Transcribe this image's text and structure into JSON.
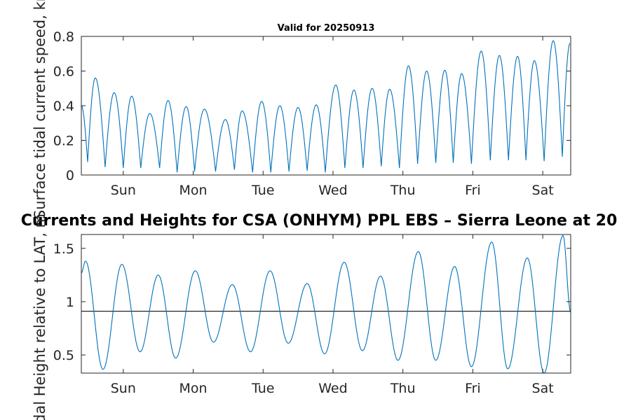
{
  "chart_data": [
    {
      "type": "line",
      "title": "Valid for 20250913",
      "ylabel": "Surface tidal current speed, kn",
      "xlabel": "",
      "ylim": [
        0,
        0.8
      ],
      "yticks": [
        "0",
        "0.2",
        "0.4",
        "0.6",
        "0.8"
      ],
      "xticks": [
        "Sun",
        "Mon",
        "Tue",
        "Wed",
        "Thu",
        "Fri",
        "Sat"
      ],
      "xrange_days": [
        0,
        7
      ],
      "grid": false,
      "series": [
        {
          "peaks": [
            {
              "x": 0.0,
              "y": 0.4
            },
            {
              "x": 0.2,
              "y": 0.56
            },
            {
              "x": 0.47,
              "y": 0.475
            },
            {
              "x": 0.72,
              "y": 0.455
            },
            {
              "x": 0.98,
              "y": 0.355
            },
            {
              "x": 1.24,
              "y": 0.43
            },
            {
              "x": 1.5,
              "y": 0.395
            },
            {
              "x": 1.76,
              "y": 0.38
            },
            {
              "x": 2.06,
              "y": 0.32
            },
            {
              "x": 2.3,
              "y": 0.37
            },
            {
              "x": 2.58,
              "y": 0.425
            },
            {
              "x": 2.84,
              "y": 0.4
            },
            {
              "x": 3.1,
              "y": 0.39
            },
            {
              "x": 3.36,
              "y": 0.405
            },
            {
              "x": 3.64,
              "y": 0.52
            },
            {
              "x": 3.9,
              "y": 0.49
            },
            {
              "x": 4.16,
              "y": 0.5
            },
            {
              "x": 4.41,
              "y": 0.495
            },
            {
              "x": 4.68,
              "y": 0.63
            },
            {
              "x": 4.94,
              "y": 0.6
            },
            {
              "x": 5.2,
              "y": 0.605
            },
            {
              "x": 5.44,
              "y": 0.585
            },
            {
              "x": 5.72,
              "y": 0.715
            },
            {
              "x": 5.98,
              "y": 0.69
            },
            {
              "x": 6.24,
              "y": 0.685
            },
            {
              "x": 6.48,
              "y": 0.66
            },
            {
              "x": 6.75,
              "y": 0.775
            },
            {
              "x": 6.99,
              "y": 0.76
            }
          ],
          "troughs": [
            {
              "x": 0.09,
              "y": 0.075
            },
            {
              "x": 0.34,
              "y": 0.045
            },
            {
              "x": 0.6,
              "y": 0.04
            },
            {
              "x": 0.85,
              "y": 0.04
            },
            {
              "x": 1.12,
              "y": 0.04
            },
            {
              "x": 1.37,
              "y": 0.015
            },
            {
              "x": 1.62,
              "y": 0.02
            },
            {
              "x": 1.92,
              "y": 0.02
            },
            {
              "x": 2.19,
              "y": 0.03
            },
            {
              "x": 2.45,
              "y": 0.015
            },
            {
              "x": 2.71,
              "y": 0.015
            },
            {
              "x": 2.97,
              "y": 0.02
            },
            {
              "x": 3.23,
              "y": 0.025
            },
            {
              "x": 3.49,
              "y": 0.015
            },
            {
              "x": 3.77,
              "y": 0.04
            },
            {
              "x": 4.03,
              "y": 0.04
            },
            {
              "x": 4.29,
              "y": 0.05
            },
            {
              "x": 4.55,
              "y": 0.04
            },
            {
              "x": 4.81,
              "y": 0.065
            },
            {
              "x": 5.07,
              "y": 0.07
            },
            {
              "x": 5.32,
              "y": 0.07
            },
            {
              "x": 5.58,
              "y": 0.065
            },
            {
              "x": 5.85,
              "y": 0.085
            },
            {
              "x": 6.11,
              "y": 0.085
            },
            {
              "x": 6.36,
              "y": 0.085
            },
            {
              "x": 6.62,
              "y": 0.08
            },
            {
              "x": 6.88,
              "y": 0.105
            }
          ]
        }
      ]
    },
    {
      "type": "line",
      "title": "Currents and Heights for CSA (ONHYM) PPL EBS  – Sierra Leone at 20",
      "ylabel": "Tidal Height relative to LAT, m",
      "xlabel": "",
      "ylim": [
        0.33,
        1.63
      ],
      "yticks": [
        "0.5",
        "1",
        "1.5"
      ],
      "ytick_values": [
        0.5,
        1,
        1.5
      ],
      "xticks": [
        "Sun",
        "Mon",
        "Tue",
        "Wed",
        "Thu",
        "Fri",
        "Sat"
      ],
      "xrange_days": [
        0,
        7
      ],
      "reference_line": 0.91,
      "grid": false,
      "series": [
        {
          "extrema": [
            {
              "x": 0.0,
              "y": 1.27
            },
            {
              "x": 0.06,
              "y": 1.38
            },
            {
              "x": 0.31,
              "y": 0.365
            },
            {
              "x": 0.58,
              "y": 1.35
            },
            {
              "x": 0.84,
              "y": 0.53
            },
            {
              "x": 1.1,
              "y": 1.25
            },
            {
              "x": 1.35,
              "y": 0.47
            },
            {
              "x": 1.63,
              "y": 1.29
            },
            {
              "x": 1.89,
              "y": 0.62
            },
            {
              "x": 2.16,
              "y": 1.16
            },
            {
              "x": 2.42,
              "y": 0.53
            },
            {
              "x": 2.7,
              "y": 1.29
            },
            {
              "x": 2.96,
              "y": 0.61
            },
            {
              "x": 3.23,
              "y": 1.17
            },
            {
              "x": 3.48,
              "y": 0.51
            },
            {
              "x": 3.76,
              "y": 1.37
            },
            {
              "x": 4.02,
              "y": 0.54
            },
            {
              "x": 4.28,
              "y": 1.24
            },
            {
              "x": 4.53,
              "y": 0.45
            },
            {
              "x": 4.82,
              "y": 1.47
            },
            {
              "x": 5.07,
              "y": 0.45
            },
            {
              "x": 5.34,
              "y": 1.33
            },
            {
              "x": 5.58,
              "y": 0.39
            },
            {
              "x": 5.87,
              "y": 1.56
            },
            {
              "x": 6.1,
              "y": 0.37
            },
            {
              "x": 6.38,
              "y": 1.41
            },
            {
              "x": 6.62,
              "y": 0.33
            },
            {
              "x": 6.89,
              "y": 1.62
            },
            {
              "x": 7.0,
              "y": 0.9
            }
          ]
        }
      ]
    }
  ],
  "colors": {
    "series": "#0072BD",
    "axis": "#262626",
    "reference": "#262626"
  }
}
